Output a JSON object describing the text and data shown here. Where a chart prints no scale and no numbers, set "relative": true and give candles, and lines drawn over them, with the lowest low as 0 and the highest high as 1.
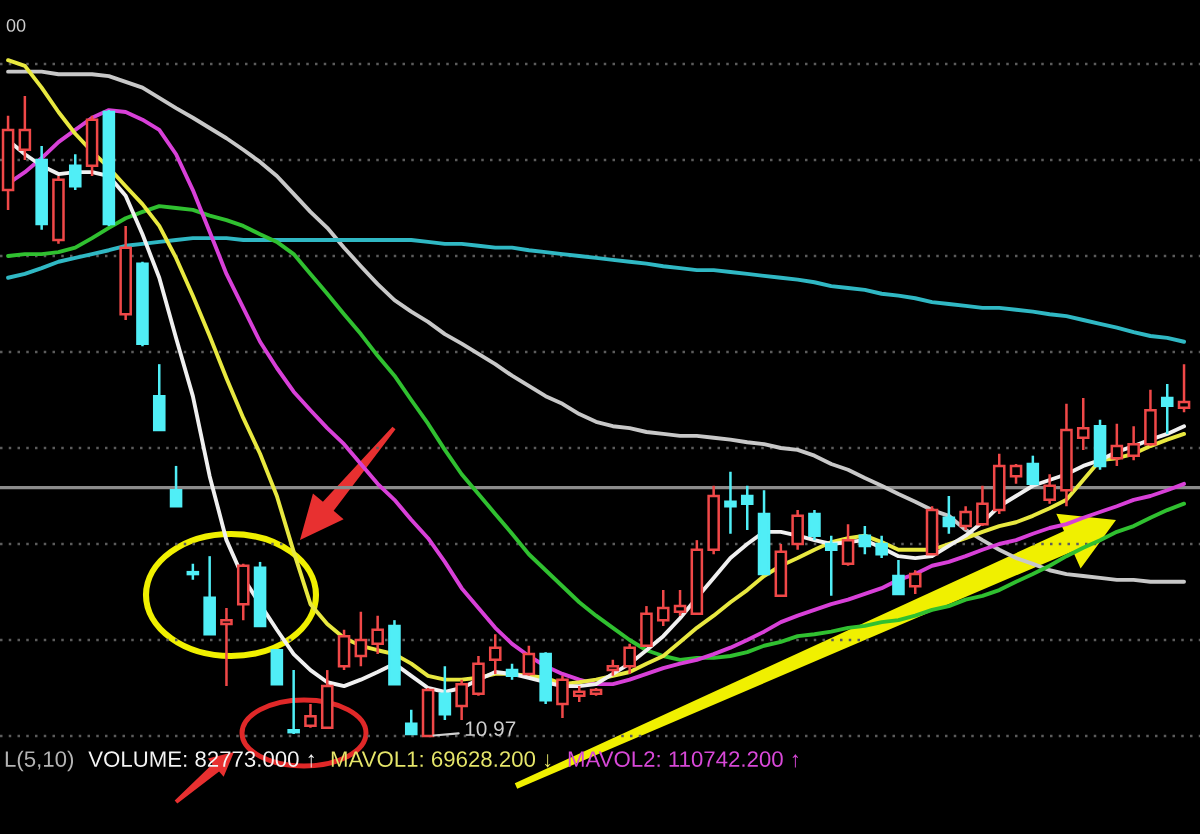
{
  "chart_data": {
    "type": "candlestick",
    "relative": true,
    "grid": "y",
    "categories": [
      null,
      null,
      null,
      null,
      null,
      null,
      null,
      null,
      null,
      null,
      null,
      null,
      null,
      null,
      null,
      null,
      null,
      null,
      null,
      null,
      null,
      null,
      null,
      null,
      null,
      null,
      null,
      null,
      null,
      null,
      null,
      null,
      null,
      null,
      null,
      null,
      null,
      null,
      null,
      null,
      null,
      null,
      null,
      null,
      null,
      null,
      null,
      null,
      null,
      null,
      null,
      null,
      null,
      null,
      null,
      null,
      null,
      null,
      null,
      null,
      null,
      null,
      null,
      null,
      null,
      null,
      null,
      null,
      null,
      null,
      null
    ],
    "ohlc": [
      [
        0.853,
        0.969,
        0.822,
        0.947
      ],
      [
        0.916,
        1.0,
        0.9,
        0.947
      ],
      [
        0.9,
        0.922,
        0.791,
        0.8
      ],
      [
        0.775,
        0.875,
        0.769,
        0.869
      ],
      [
        0.891,
        0.909,
        0.853,
        0.859
      ],
      [
        0.891,
        0.969,
        0.875,
        0.963
      ],
      [
        0.975,
        0.978,
        0.797,
        0.8
      ],
      [
        0.659,
        0.797,
        0.65,
        0.763
      ],
      [
        0.738,
        0.741,
        0.609,
        0.613
      ],
      [
        0.531,
        0.581,
        0.478,
        0.478
      ],
      [
        0.384,
        0.422,
        0.359,
        0.359
      ],
      [
        0.256,
        0.269,
        0.244,
        0.253
      ],
      [
        0.216,
        0.281,
        0.159,
        0.159
      ],
      [
        0.175,
        0.2,
        0.078,
        0.181
      ],
      [
        0.206,
        0.269,
        0.181,
        0.266
      ],
      [
        0.263,
        0.272,
        0.172,
        0.172
      ],
      [
        0.134,
        0.134,
        0.081,
        0.081
      ],
      [
        0.009,
        0.103,
        0.003,
        0.006
      ],
      [
        0.016,
        0.05,
        0.013,
        0.031
      ],
      [
        0.013,
        0.103,
        0.013,
        0.078
      ],
      [
        0.109,
        0.166,
        0.103,
        0.156
      ],
      [
        0.125,
        0.194,
        0.109,
        0.15
      ],
      [
        0.144,
        0.188,
        0.128,
        0.166
      ],
      [
        0.172,
        0.181,
        0.081,
        0.081
      ],
      [
        0.019,
        0.041,
        0.003,
        0.003
      ],
      [
        0.0,
        0.075,
        0.0,
        0.072
      ],
      [
        0.066,
        0.109,
        0.025,
        0.034
      ],
      [
        0.047,
        0.088,
        0.025,
        0.081
      ],
      [
        0.066,
        0.125,
        0.063,
        0.113
      ],
      [
        0.119,
        0.159,
        0.097,
        0.138
      ],
      [
        0.103,
        0.113,
        0.088,
        0.094
      ],
      [
        0.097,
        0.141,
        0.094,
        0.128
      ],
      [
        0.128,
        0.131,
        0.05,
        0.056
      ],
      [
        0.05,
        0.094,
        0.028,
        0.088
      ],
      [
        0.063,
        0.078,
        0.053,
        0.069
      ],
      [
        0.066,
        0.075,
        0.063,
        0.072
      ],
      [
        0.103,
        0.119,
        0.094,
        0.109
      ],
      [
        0.109,
        0.144,
        0.097,
        0.138
      ],
      [
        0.141,
        0.203,
        0.141,
        0.191
      ],
      [
        0.181,
        0.228,
        0.172,
        0.2
      ],
      [
        0.194,
        0.228,
        0.188,
        0.203
      ],
      [
        0.191,
        0.306,
        0.191,
        0.291
      ],
      [
        0.291,
        0.391,
        0.284,
        0.375
      ],
      [
        0.366,
        0.413,
        0.316,
        0.359
      ],
      [
        0.375,
        0.391,
        0.322,
        0.363
      ],
      [
        0.347,
        0.384,
        0.253,
        0.253
      ],
      [
        0.219,
        0.3,
        0.219,
        0.288
      ],
      [
        0.3,
        0.353,
        0.291,
        0.344
      ],
      [
        0.347,
        0.353,
        0.306,
        0.313
      ],
      [
        0.3,
        0.313,
        0.219,
        0.291
      ],
      [
        0.269,
        0.331,
        0.266,
        0.306
      ],
      [
        0.313,
        0.328,
        0.284,
        0.297
      ],
      [
        0.3,
        0.313,
        0.278,
        0.284
      ],
      [
        0.25,
        0.275,
        0.222,
        0.222
      ],
      [
        0.234,
        0.259,
        0.222,
        0.253
      ],
      [
        0.284,
        0.359,
        0.284,
        0.353
      ],
      [
        0.341,
        0.375,
        0.316,
        0.328
      ],
      [
        0.328,
        0.359,
        0.322,
        0.35
      ],
      [
        0.331,
        0.391,
        0.328,
        0.363
      ],
      [
        0.353,
        0.441,
        0.347,
        0.422
      ],
      [
        0.406,
        0.425,
        0.394,
        0.422
      ],
      [
        0.425,
        0.438,
        0.394,
        0.394
      ],
      [
        0.369,
        0.409,
        0.363,
        0.391
      ],
      [
        0.384,
        0.519,
        0.359,
        0.478
      ],
      [
        0.466,
        0.528,
        0.447,
        0.481
      ],
      [
        0.484,
        0.494,
        0.416,
        0.422
      ],
      [
        0.434,
        0.488,
        0.422,
        0.453
      ],
      [
        0.438,
        0.484,
        0.431,
        0.456
      ],
      [
        0.456,
        0.541,
        0.453,
        0.509
      ],
      [
        0.528,
        0.55,
        0.472,
        0.516
      ],
      [
        0.513,
        0.581,
        0.506,
        0.522
      ]
    ],
    "colors": [
      "#f04848",
      "#f04848",
      "#50eef6",
      "#f04848",
      "#50eef6",
      "#f04848",
      "#50eef6",
      "#f04848",
      "#50eef6",
      "#50eef6",
      "#50eef6",
      "#50eef6",
      "#50eef6",
      "#f04848",
      "#f04848",
      "#50eef6",
      "#50eef6",
      "#50eef6",
      "#f04848",
      "#f04848",
      "#f04848",
      "#f04848",
      "#f04848",
      "#50eef6",
      "#50eef6",
      "#f04848",
      "#50eef6",
      "#f04848",
      "#f04848",
      "#f04848",
      "#50eef6",
      "#f04848",
      "#50eef6",
      "#f04848",
      "#f04848",
      "#f04848",
      "#f04848",
      "#f04848",
      "#f04848",
      "#f04848",
      "#f04848",
      "#f04848",
      "#f04848",
      "#50eef6",
      "#50eef6",
      "#50eef6",
      "#f04848",
      "#f04848",
      "#50eef6",
      "#50eef6",
      "#f04848",
      "#50eef6",
      "#50eef6",
      "#50eef6",
      "#f04848",
      "#f04848",
      "#50eef6",
      "#f04848",
      "#f04848",
      "#f04848",
      "#f04848",
      "#50eef6",
      "#f04848",
      "#f04848",
      "#f04848",
      "#50eef6",
      "#f04848",
      "#f04848",
      "#f04848",
      "#50eef6",
      "#f04848"
    ],
    "series": [
      {
        "type": "line",
        "color": "#c8c8c8",
        "values": [
          1.038,
          1.038,
          1.038,
          1.034,
          1.034,
          1.034,
          1.031,
          1.022,
          1.013,
          0.997,
          0.981,
          0.966,
          0.95,
          0.934,
          0.916,
          0.897,
          0.875,
          0.847,
          0.819,
          0.794,
          0.763,
          0.734,
          0.706,
          0.681,
          0.663,
          0.647,
          0.628,
          0.613,
          0.597,
          0.581,
          0.563,
          0.547,
          0.531,
          0.519,
          0.503,
          0.491,
          0.484,
          0.481,
          0.475,
          0.472,
          0.469,
          0.469,
          0.466,
          0.463,
          0.459,
          0.456,
          0.45,
          0.447,
          0.438,
          0.425,
          0.416,
          0.403,
          0.391,
          0.378,
          0.366,
          0.353,
          0.344,
          0.322,
          0.306,
          0.291,
          0.278,
          0.269,
          0.259,
          0.253,
          0.25,
          0.247,
          0.244,
          0.244,
          0.241,
          0.241,
          0.241
        ]
      },
      {
        "type": "line",
        "color": "#30b8c4",
        "values": [
          0.716,
          0.722,
          0.731,
          0.741,
          0.747,
          0.753,
          0.759,
          0.766,
          0.769,
          0.772,
          0.775,
          0.778,
          0.778,
          0.778,
          0.775,
          0.775,
          0.775,
          0.775,
          0.775,
          0.775,
          0.775,
          0.775,
          0.775,
          0.775,
          0.775,
          0.772,
          0.769,
          0.769,
          0.766,
          0.763,
          0.763,
          0.759,
          0.756,
          0.753,
          0.75,
          0.747,
          0.744,
          0.741,
          0.738,
          0.734,
          0.731,
          0.728,
          0.728,
          0.725,
          0.722,
          0.719,
          0.716,
          0.713,
          0.709,
          0.703,
          0.7,
          0.697,
          0.691,
          0.688,
          0.684,
          0.678,
          0.675,
          0.672,
          0.669,
          0.669,
          0.666,
          0.663,
          0.659,
          0.656,
          0.65,
          0.644,
          0.638,
          0.631,
          0.625,
          0.622,
          0.616
        ]
      },
      {
        "type": "line",
        "color": "#30c030",
        "values": [
          0.75,
          0.753,
          0.753,
          0.756,
          0.763,
          0.778,
          0.794,
          0.809,
          0.819,
          0.828,
          0.825,
          0.822,
          0.813,
          0.806,
          0.797,
          0.784,
          0.772,
          0.753,
          0.722,
          0.691,
          0.659,
          0.628,
          0.594,
          0.563,
          0.525,
          0.488,
          0.447,
          0.409,
          0.378,
          0.347,
          0.316,
          0.284,
          0.259,
          0.234,
          0.209,
          0.188,
          0.169,
          0.15,
          0.134,
          0.125,
          0.119,
          0.122,
          0.122,
          0.125,
          0.131,
          0.141,
          0.147,
          0.156,
          0.159,
          0.163,
          0.169,
          0.172,
          0.178,
          0.181,
          0.188,
          0.197,
          0.203,
          0.213,
          0.219,
          0.228,
          0.241,
          0.253,
          0.266,
          0.281,
          0.294,
          0.306,
          0.319,
          0.328,
          0.341,
          0.353,
          0.363
        ]
      },
      {
        "type": "line",
        "color": "#d840d8",
        "values": [
          0.863,
          0.881,
          0.903,
          0.928,
          0.947,
          0.966,
          0.978,
          0.975,
          0.963,
          0.947,
          0.909,
          0.853,
          0.788,
          0.722,
          0.669,
          0.616,
          0.575,
          0.538,
          0.509,
          0.481,
          0.456,
          0.425,
          0.394,
          0.369,
          0.338,
          0.309,
          0.272,
          0.231,
          0.2,
          0.169,
          0.144,
          0.125,
          0.109,
          0.097,
          0.088,
          0.081,
          0.081,
          0.088,
          0.097,
          0.106,
          0.113,
          0.119,
          0.128,
          0.138,
          0.15,
          0.163,
          0.178,
          0.188,
          0.197,
          0.206,
          0.213,
          0.222,
          0.231,
          0.244,
          0.253,
          0.266,
          0.272,
          0.281,
          0.291,
          0.3,
          0.306,
          0.316,
          0.325,
          0.331,
          0.341,
          0.35,
          0.359,
          0.369,
          0.375,
          0.384,
          0.394
        ]
      },
      {
        "type": "line",
        "color": "#e8e840",
        "values": [
          1.056,
          1.047,
          1.013,
          0.975,
          0.941,
          0.913,
          0.888,
          0.859,
          0.831,
          0.797,
          0.747,
          0.688,
          0.625,
          0.559,
          0.497,
          0.441,
          0.375,
          0.288,
          0.206,
          0.175,
          0.153,
          0.141,
          0.134,
          0.128,
          0.113,
          0.094,
          0.088,
          0.088,
          0.091,
          0.097,
          0.097,
          0.094,
          0.091,
          0.081,
          0.084,
          0.088,
          0.094,
          0.1,
          0.113,
          0.125,
          0.147,
          0.169,
          0.188,
          0.209,
          0.228,
          0.25,
          0.266,
          0.278,
          0.291,
          0.303,
          0.309,
          0.313,
          0.303,
          0.291,
          0.291,
          0.291,
          0.3,
          0.309,
          0.319,
          0.328,
          0.334,
          0.344,
          0.356,
          0.369,
          0.4,
          0.431,
          0.434,
          0.441,
          0.453,
          0.463,
          0.472
        ]
      },
      {
        "type": "line",
        "color": "#f0f0f0",
        "values": [
          0.931,
          0.909,
          0.891,
          0.878,
          0.881,
          0.881,
          0.875,
          0.844,
          0.784,
          0.716,
          0.622,
          0.531,
          0.406,
          0.306,
          0.247,
          0.206,
          0.166,
          0.128,
          0.103,
          0.084,
          0.078,
          0.088,
          0.1,
          0.113,
          0.094,
          0.075,
          0.069,
          0.075,
          0.088,
          0.1,
          0.097,
          0.091,
          0.084,
          0.078,
          0.078,
          0.081,
          0.097,
          0.113,
          0.134,
          0.156,
          0.184,
          0.216,
          0.247,
          0.278,
          0.3,
          0.319,
          0.319,
          0.313,
          0.306,
          0.3,
          0.303,
          0.306,
          0.294,
          0.281,
          0.278,
          0.281,
          0.297,
          0.313,
          0.334,
          0.359,
          0.375,
          0.391,
          0.4,
          0.409,
          0.422,
          0.431,
          0.444,
          0.453,
          0.463,
          0.472,
          0.484
        ]
      }
    ],
    "ref_lines": [
      {
        "axis": "y",
        "value": 0.388,
        "label": null,
        "color": "#8c8c8c"
      }
    ],
    "annotations": [
      "00",
      "10.97",
      "L(5,10)",
      "VOLUME: 82773.000 ↑",
      "MAVOL1: 69628.200 ↓",
      "MAVOL2: 110742.200 ↑"
    ]
  }
}
